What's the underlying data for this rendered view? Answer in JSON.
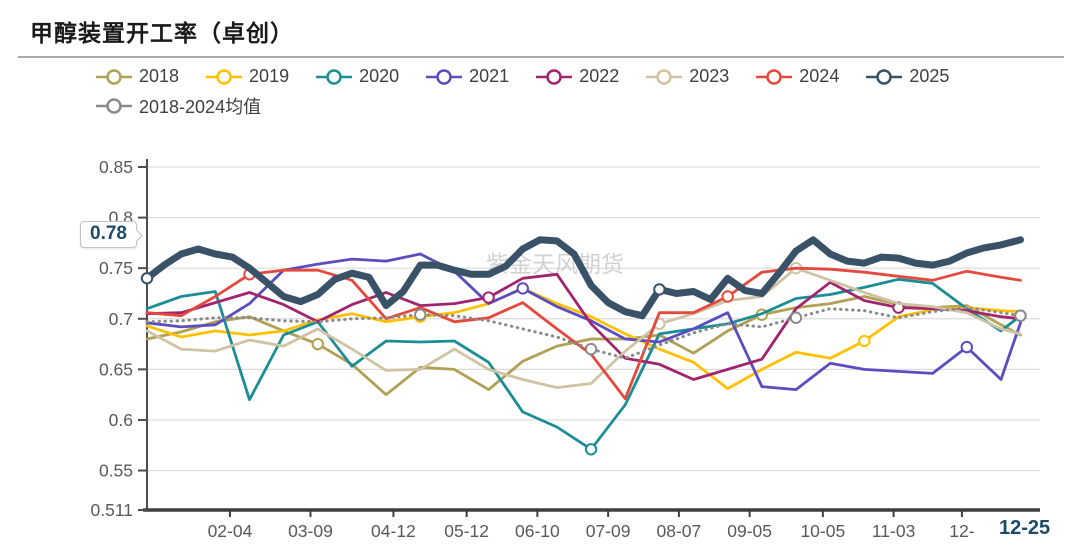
{
  "header": {
    "title": "甲醇装置开工率（卓创）"
  },
  "watermark": "紫金天风期货",
  "legend": {
    "rows": [
      [
        "2018",
        "2019",
        "2020",
        "2021",
        "2022",
        "2023",
        "2024",
        "2025"
      ],
      [
        "2018-2024均值"
      ]
    ]
  },
  "chart_data": {
    "type": "line",
    "title": "甲醇装置开工率（卓创）",
    "ylabel": "",
    "xlabel": "",
    "ylim": [
      0.511,
      0.85
    ],
    "grid": true,
    "legend_position": "top",
    "axis_color": "#595959",
    "grid_color": "#dcdcdc",
    "label_color": "#595959",
    "accent_color": "#1b4a6b",
    "watermark_color": "#c4c4c4",
    "y_ticks": [
      {
        "v": 0.85,
        "label": "0.85"
      },
      {
        "v": 0.8,
        "label": "0.8"
      },
      {
        "v": 0.75,
        "label": "0.75"
      },
      {
        "v": 0.7,
        "label": "0.7"
      },
      {
        "v": 0.65,
        "label": "0.65"
      },
      {
        "v": 0.6,
        "label": "0.6"
      },
      {
        "v": 0.55,
        "label": "0.55"
      },
      {
        "v": 0.511,
        "label": "0.511"
      }
    ],
    "x_ticks": [
      {
        "day": 34,
        "label": "02-04"
      },
      {
        "day": 67,
        "label": "03-09"
      },
      {
        "day": 101,
        "label": "04-12"
      },
      {
        "day": 131,
        "label": "05-12"
      },
      {
        "day": 160,
        "label": "06-10"
      },
      {
        "day": 189,
        "label": "07-09"
      },
      {
        "day": 218,
        "label": "08-07"
      },
      {
        "day": 247,
        "label": "09-05"
      },
      {
        "day": 277,
        "label": "10-05"
      },
      {
        "day": 306,
        "label": "11-03"
      },
      {
        "day": 334,
        "label": "12-"
      }
    ],
    "x_total_days": 366,
    "latest": {
      "value_label": "0.78",
      "date_label": "12-25",
      "value": 0.78,
      "day": 358
    },
    "sample_days": [
      0,
      14,
      28,
      42,
      56,
      70,
      84,
      98,
      112,
      126,
      140,
      154,
      168,
      182,
      196,
      210,
      224,
      238,
      252,
      266,
      280,
      294,
      308,
      322,
      336,
      350,
      358
    ],
    "series": [
      {
        "name": "2018",
        "color": "#b0a154",
        "width": 2.8,
        "markers": [
          5,
          18
        ],
        "values": [
          0.68,
          0.687,
          0.697,
          0.702,
          0.688,
          0.675,
          0.655,
          0.625,
          0.652,
          0.65,
          0.63,
          0.658,
          0.673,
          0.68,
          0.68,
          0.684,
          0.666,
          0.688,
          0.704,
          0.711,
          0.715,
          0.722,
          0.714,
          0.711,
          0.713,
          0.694,
          0.684
        ]
      },
      {
        "name": "2019",
        "color": "#ffc000",
        "width": 2.8,
        "markers": [
          8,
          21
        ],
        "values": [
          0.693,
          0.682,
          0.688,
          0.684,
          0.688,
          0.699,
          0.705,
          0.697,
          0.702,
          0.706,
          0.715,
          0.73,
          0.715,
          0.702,
          0.685,
          0.67,
          0.657,
          0.631,
          0.65,
          0.667,
          0.661,
          0.678,
          0.702,
          0.709,
          0.711,
          0.708,
          0.707
        ]
      },
      {
        "name": "2020",
        "color": "#1b8e95",
        "width": 2.8,
        "markers": [
          13,
          26
        ],
        "values": [
          0.71,
          0.722,
          0.727,
          0.62,
          0.684,
          0.697,
          0.653,
          0.678,
          0.677,
          0.678,
          0.657,
          0.608,
          0.593,
          0.571,
          0.615,
          0.685,
          0.69,
          0.695,
          0.705,
          0.72,
          0.724,
          0.731,
          0.739,
          0.735,
          0.71,
          0.688,
          0.703
        ]
      },
      {
        "name": "2021",
        "color": "#5a4dc0",
        "width": 2.8,
        "markers": [
          11,
          24
        ],
        "values": [
          0.696,
          0.692,
          0.694,
          0.715,
          0.748,
          0.754,
          0.759,
          0.757,
          0.764,
          0.747,
          0.715,
          0.73,
          0.712,
          0.698,
          0.68,
          0.677,
          0.69,
          0.706,
          0.633,
          0.63,
          0.656,
          0.65,
          0.648,
          0.646,
          0.672,
          0.64,
          0.696
        ]
      },
      {
        "name": "2022",
        "color": "#a1256e",
        "width": 2.8,
        "markers": [
          10,
          22
        ],
        "values": [
          0.705,
          0.706,
          0.716,
          0.726,
          0.714,
          0.697,
          0.714,
          0.726,
          0.713,
          0.715,
          0.721,
          0.74,
          0.744,
          0.695,
          0.661,
          0.655,
          0.64,
          0.65,
          0.66,
          0.71,
          0.736,
          0.718,
          0.711,
          0.71,
          0.708,
          0.702,
          0.7
        ]
      },
      {
        "name": "2023",
        "color": "#cfc3a4",
        "width": 2.8,
        "markers": [
          15,
          19
        ],
        "values": [
          0.688,
          0.67,
          0.668,
          0.679,
          0.673,
          0.69,
          0.67,
          0.649,
          0.65,
          0.67,
          0.65,
          0.64,
          0.632,
          0.636,
          0.668,
          0.695,
          0.705,
          0.718,
          0.722,
          0.75,
          0.738,
          0.726,
          0.715,
          0.712,
          0.706,
          0.69,
          0.685
        ]
      },
      {
        "name": "2024",
        "color": "#e4493e",
        "width": 2.8,
        "markers": [
          3,
          17
        ],
        "values": [
          0.706,
          0.703,
          0.722,
          0.744,
          0.748,
          0.748,
          0.738,
          0.7,
          0.711,
          0.697,
          0.701,
          0.716,
          0.69,
          0.665,
          0.621,
          0.706,
          0.706,
          0.722,
          0.746,
          0.75,
          0.749,
          0.746,
          0.742,
          0.738,
          0.747,
          0.741,
          0.738
        ]
      },
      {
        "name": "2018-2024均值",
        "color": "#8a8a8a",
        "width": 3.0,
        "dash": "0.5 5.5",
        "markers": [
          8,
          13,
          19,
          26
        ],
        "values": [
          0.697,
          0.698,
          0.701,
          0.701,
          0.698,
          0.697,
          0.7,
          0.701,
          0.704,
          0.703,
          0.698,
          0.69,
          0.682,
          0.67,
          0.661,
          0.674,
          0.686,
          0.695,
          0.692,
          0.701,
          0.71,
          0.708,
          0.701,
          0.707,
          0.711,
          0.706,
          0.703
        ]
      },
      {
        "name": "2025",
        "color": "#3a5268",
        "width": 7,
        "markers": [
          0,
          30
        ],
        "x": [
          0,
          7,
          14,
          21,
          28,
          35,
          42,
          49,
          56,
          63,
          70,
          77,
          84,
          91,
          98,
          105,
          112,
          119,
          126,
          133,
          140,
          147,
          154,
          161,
          168,
          175,
          182,
          189,
          196,
          203,
          210,
          217,
          224,
          231,
          238,
          245,
          252,
          259,
          266,
          273,
          280,
          287,
          294,
          301,
          308,
          315,
          322,
          329,
          336,
          343,
          350,
          358
        ],
        "values": [
          0.74,
          0.753,
          0.764,
          0.769,
          0.764,
          0.761,
          0.75,
          0.736,
          0.722,
          0.717,
          0.724,
          0.739,
          0.745,
          0.741,
          0.713,
          0.727,
          0.753,
          0.753,
          0.748,
          0.744,
          0.744,
          0.752,
          0.769,
          0.778,
          0.777,
          0.764,
          0.733,
          0.716,
          0.707,
          0.703,
          0.729,
          0.725,
          0.727,
          0.719,
          0.74,
          0.728,
          0.725,
          0.745,
          0.767,
          0.778,
          0.764,
          0.757,
          0.755,
          0.761,
          0.76,
          0.755,
          0.753,
          0.757,
          0.765,
          0.77,
          0.773,
          0.778
        ]
      }
    ]
  }
}
